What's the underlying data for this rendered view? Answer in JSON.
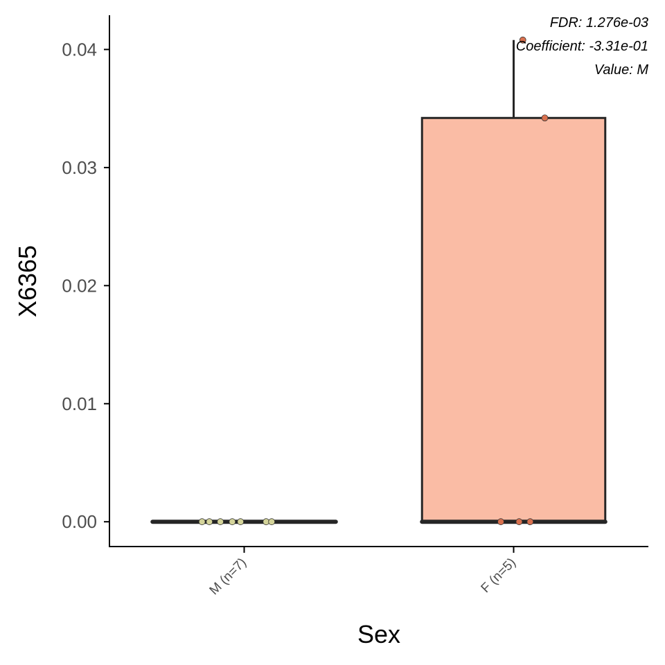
{
  "chart_data": {
    "type": "box",
    "xlabel": "Sex",
    "ylabel": "X6365",
    "ylim": [
      -0.0021,
      0.0429
    ],
    "yticks": [
      0.0,
      0.01,
      0.02,
      0.03,
      0.04
    ],
    "ytick_labels": [
      "0.00",
      "0.01",
      "0.02",
      "0.03",
      "0.04"
    ],
    "grid": false,
    "categories": [
      "M (n=7)",
      "F (n=5)"
    ],
    "boxes": [
      {
        "category": "M (n=7)",
        "min": 0.0,
        "q1": 0.0,
        "median": 0.0,
        "q3": 0.0,
        "max": 0.0,
        "fill": "#f7f7d4",
        "point_color": "#d4d49a",
        "points": [
          0.0,
          0.0,
          0.0,
          0.0,
          0.0,
          0.0,
          0.0
        ]
      },
      {
        "category": "F (n=5)",
        "min": 0.0,
        "q1": 0.0,
        "median": 0.0,
        "q3": 0.0342,
        "max": 0.0408,
        "fill": "#fabca5",
        "point_color": "#d9714f",
        "points": [
          0.0408,
          0.0342,
          0.0,
          0.0,
          0.0
        ]
      }
    ],
    "annotations": [
      "FDR: 1.276e-03",
      "Coefficient: -3.31e-01",
      "Value: M"
    ]
  }
}
